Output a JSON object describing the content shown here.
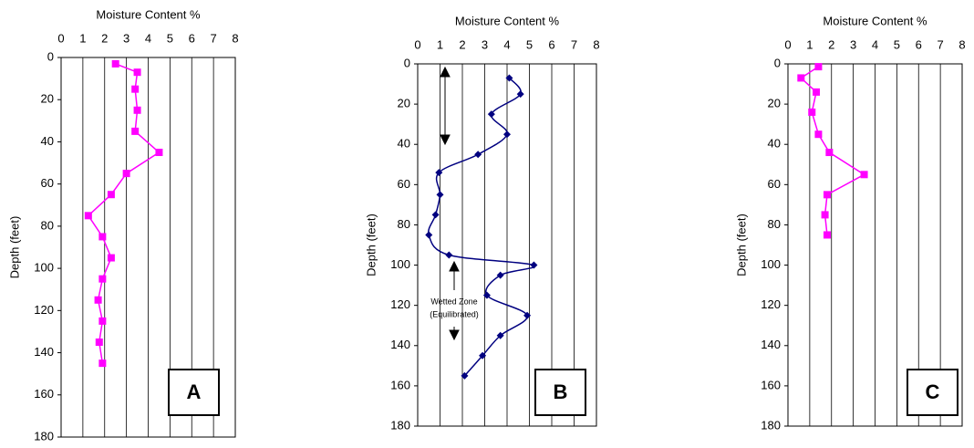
{
  "chart_data": [
    {
      "type": "line",
      "title": "Moisture Content %",
      "y_label": "Depth (feet)",
      "panel_label": "A",
      "xlim": [
        0,
        8
      ],
      "xticks": [
        0,
        1,
        2,
        3,
        4,
        5,
        6,
        7,
        8
      ],
      "ylim": [
        0,
        180
      ],
      "yticks": [
        0,
        20,
        40,
        60,
        80,
        100,
        120,
        140,
        160,
        180
      ],
      "y_inverted": true,
      "grid": "x",
      "smooth": false,
      "marker": "square",
      "series": [
        {
          "color": "#ff00ff",
          "values": [
            2.5,
            3.5,
            3.4,
            3.5,
            3.4,
            4.5,
            3.0,
            2.3,
            1.25,
            1.9,
            2.3,
            1.9,
            1.7,
            1.9,
            1.75,
            1.9
          ],
          "y": [
            3,
            7,
            15,
            25,
            35,
            45,
            55,
            65,
            75,
            85,
            95,
            105,
            115,
            125,
            135,
            145
          ]
        }
      ]
    },
    {
      "type": "line",
      "title": "Moisture Content %",
      "y_label": "Depth (feet)",
      "panel_label": "B",
      "xlim": [
        0,
        8
      ],
      "xticks": [
        0,
        1,
        2,
        3,
        4,
        5,
        6,
        7,
        8
      ],
      "ylim": [
        0,
        180
      ],
      "yticks": [
        0,
        20,
        40,
        60,
        80,
        100,
        120,
        140,
        160,
        180
      ],
      "y_inverted": true,
      "grid": "x",
      "smooth": true,
      "marker": "diamond",
      "annotation": [
        "Wetted Zone",
        "(Equilibrated)"
      ],
      "series": [
        {
          "color": "#000080",
          "values": [
            4.1,
            4.6,
            3.3,
            4.0,
            2.7,
            0.95,
            1.0,
            0.8,
            0.5,
            1.4,
            5.2,
            3.7,
            3.1,
            4.9,
            3.7,
            2.9,
            2.1
          ],
          "y": [
            7,
            15,
            25,
            35,
            45,
            54,
            65,
            75,
            85,
            95,
            100,
            105,
            115,
            125,
            135,
            145,
            155
          ]
        }
      ]
    },
    {
      "type": "line",
      "title": "Moisture Content %",
      "y_label": "Depth (feet)",
      "panel_label": "C",
      "xlim": [
        0,
        8
      ],
      "xticks": [
        0,
        1,
        2,
        3,
        4,
        5,
        6,
        7,
        8
      ],
      "ylim": [
        0,
        180
      ],
      "yticks": [
        0,
        20,
        40,
        60,
        80,
        100,
        120,
        140,
        160,
        180
      ],
      "y_inverted": true,
      "grid": "x",
      "smooth": false,
      "marker": "square",
      "series": [
        {
          "color": "#ff00ff",
          "values": [
            1.4,
            0.6,
            1.3,
            1.1,
            1.4,
            1.9,
            3.5,
            1.8,
            1.7,
            1.8
          ],
          "y": [
            1.4,
            7,
            14,
            24,
            35,
            44,
            55,
            65,
            75,
            85
          ]
        }
      ]
    }
  ]
}
